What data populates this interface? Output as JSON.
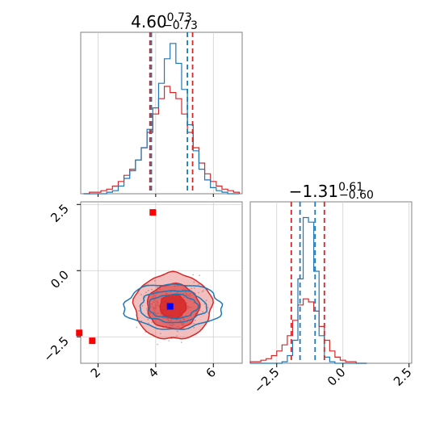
{
  "chart_data": {
    "type": "corner",
    "params": [
      {
        "median": 4.6,
        "plus": "0.73",
        "minus": "0.73",
        "median_label": "4.60",
        "range": [
          1.4,
          7.0
        ],
        "ticks": [
          2,
          4,
          6
        ],
        "tick_labels": [
          "2",
          "4",
          "6"
        ]
      },
      {
        "median": -1.31,
        "plus": "0.61",
        "minus": "0.60",
        "median_label": "−1.31",
        "range": [
          -3.5,
          2.6
        ],
        "ticks": [
          -2.5,
          0.0,
          2.5
        ],
        "tick_labels": [
          "−2.5",
          "0.0",
          "2.5"
        ]
      }
    ],
    "series": [
      {
        "color": "#1f77b4",
        "quantiles_p0": [
          3.85,
          5.1
        ],
        "quantiles_p1": [
          -1.62,
          -1.05
        ]
      },
      {
        "color": "#d62728",
        "quantiles_p0": [
          3.8,
          5.28
        ],
        "quantiles_p1": [
          -1.95,
          -0.7
        ]
      }
    ],
    "hist_p0_centers": [
      1.6,
      1.8,
      2.0,
      2.2,
      2.4,
      2.6,
      2.8,
      3.0,
      3.2,
      3.4,
      3.6,
      3.8,
      4.0,
      4.2,
      4.4,
      4.6,
      4.8,
      5.0,
      5.2,
      5.4,
      5.6,
      5.8,
      6.0,
      6.2,
      6.4,
      6.6,
      6.8
    ],
    "hist_p0_blue": [
      0,
      0,
      0,
      0,
      0.01,
      0.02,
      0.05,
      0.1,
      0.15,
      0.22,
      0.3,
      0.42,
      0.56,
      0.72,
      0.88,
      0.98,
      0.85,
      0.68,
      0.45,
      0.28,
      0.16,
      0.09,
      0.04,
      0.02,
      0.01,
      0,
      0
    ],
    "hist_p0_red": [
      0,
      0.01,
      0.01,
      0.02,
      0.03,
      0.05,
      0.08,
      0.12,
      0.16,
      0.22,
      0.3,
      0.4,
      0.52,
      0.62,
      0.7,
      0.66,
      0.62,
      0.52,
      0.4,
      0.3,
      0.2,
      0.13,
      0.08,
      0.05,
      0.03,
      0.02,
      0.01
    ],
    "hist_p1_centers": [
      -3.4,
      -3.2,
      -3.0,
      -2.8,
      -2.6,
      -2.4,
      -2.2,
      -2.0,
      -1.8,
      -1.6,
      -1.4,
      -1.2,
      -1.0,
      -0.8,
      -0.6,
      -0.4,
      -0.2,
      0.0,
      0.2,
      0.4,
      0.6,
      0.8
    ],
    "hist_p1_blue": [
      0,
      0,
      0,
      0,
      0,
      0,
      0.01,
      0.05,
      0.15,
      0.55,
      0.95,
      0.92,
      0.6,
      0.18,
      0.04,
      0.01,
      0,
      0,
      0,
      0,
      0,
      0
    ],
    "hist_p1_red": [
      0.01,
      0.01,
      0.02,
      0.03,
      0.05,
      0.08,
      0.12,
      0.18,
      0.28,
      0.38,
      0.42,
      0.4,
      0.34,
      0.24,
      0.15,
      0.08,
      0.04,
      0.02,
      0.01,
      0.01,
      0,
      0
    ],
    "markers_red": [
      [
        3.9,
        2.2
      ],
      [
        1.8,
        -2.65
      ],
      [
        1.35,
        -2.35
      ]
    ],
    "marker_blue": [
      4.5,
      -1.35
    ],
    "contour_center": [
      4.6,
      -1.35
    ],
    "contour_levels_red": [
      [
        0.45,
        0.45
      ],
      [
        0.9,
        0.85
      ],
      [
        1.35,
        1.25
      ]
    ],
    "contour_levels_blue": [
      [
        0.85,
        0.45
      ],
      [
        1.15,
        0.6
      ],
      [
        1.7,
        0.85
      ]
    ],
    "bar_labels_x": [
      "2",
      "4",
      "6"
    ]
  }
}
